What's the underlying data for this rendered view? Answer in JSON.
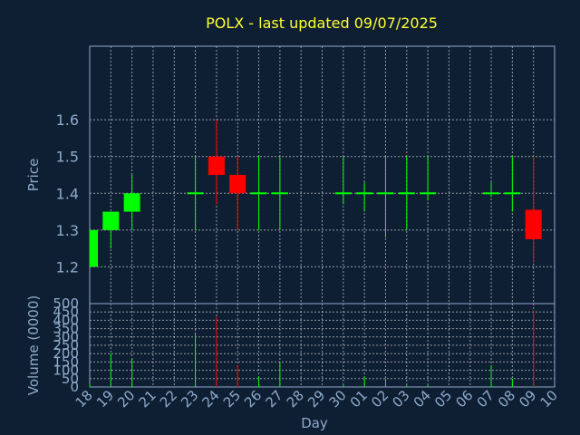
{
  "chart_data": {
    "type": "candlestick",
    "title": "POLX - last updated 09/07/2025",
    "xlabel": "Day",
    "price_panel": {
      "ylabel": "Price",
      "ylim": [
        1.1,
        1.8
      ],
      "yticks": [
        "1.2",
        "1.3",
        "1.4",
        "1.5",
        "1.6"
      ],
      "grid": true
    },
    "volume_panel": {
      "ylabel": "Volume (0000)",
      "ylim": [
        0,
        500
      ],
      "yticks": [
        "0",
        "50",
        "100",
        "150",
        "200",
        "250",
        "300",
        "350",
        "400",
        "450",
        "500"
      ],
      "grid": true
    },
    "x_tick_labels": [
      "18",
      "19",
      "20",
      "21",
      "22",
      "23",
      "24",
      "25",
      "26",
      "27",
      "28",
      "29",
      "30",
      "01",
      "02",
      "03",
      "04",
      "05",
      "06",
      "07",
      "08",
      "09",
      "10"
    ],
    "up_color": "#00ff00",
    "down_color": "#ff0000",
    "candles": [
      {
        "day": "18",
        "open": 1.2,
        "high": 1.3,
        "low": 1.2,
        "close": 1.3,
        "volume": 20
      },
      {
        "day": "19",
        "open": 1.3,
        "high": 1.35,
        "low": 1.25,
        "close": 1.35,
        "volume": 200
      },
      {
        "day": "20",
        "open": 1.35,
        "high": 1.45,
        "low": 1.3,
        "close": 1.4,
        "volume": 170
      },
      {
        "day": "23",
        "open": 1.4,
        "high": 1.5,
        "low": 1.3,
        "close": 1.4,
        "volume": 320
      },
      {
        "day": "24",
        "open": 1.5,
        "high": 1.6,
        "low": 1.37,
        "close": 1.45,
        "volume": 420
      },
      {
        "day": "25",
        "open": 1.45,
        "high": 1.5,
        "low": 1.3,
        "close": 1.4,
        "volume": 130
      },
      {
        "day": "26",
        "open": 1.4,
        "high": 1.5,
        "low": 1.3,
        "close": 1.4,
        "volume": 60
      },
      {
        "day": "27",
        "open": 1.4,
        "high": 1.5,
        "low": 1.3,
        "close": 1.4,
        "volume": 150
      },
      {
        "day": "30",
        "open": 1.4,
        "high": 1.5,
        "low": 1.37,
        "close": 1.4,
        "volume": 10
      },
      {
        "day": "01",
        "open": 1.4,
        "high": 1.43,
        "low": 1.35,
        "close": 1.4,
        "volume": 60
      },
      {
        "day": "02",
        "open": 1.4,
        "high": 1.5,
        "low": 1.28,
        "close": 1.4,
        "volume": 50
      },
      {
        "day": "03",
        "open": 1.4,
        "high": 1.5,
        "low": 1.3,
        "close": 1.4,
        "volume": 10
      },
      {
        "day": "04",
        "open": 1.4,
        "high": 1.5,
        "low": 1.38,
        "close": 1.4,
        "volume": 10
      },
      {
        "day": "07",
        "open": 1.4,
        "high": 1.43,
        "low": 1.39,
        "close": 1.4,
        "volume": 130
      },
      {
        "day": "08",
        "open": 1.4,
        "high": 1.5,
        "low": 1.35,
        "close": 1.4,
        "volume": 50
      },
      {
        "day": "09",
        "open": 1.355,
        "high": 1.5,
        "low": 1.21,
        "close": 1.275,
        "volume": 460
      }
    ]
  }
}
